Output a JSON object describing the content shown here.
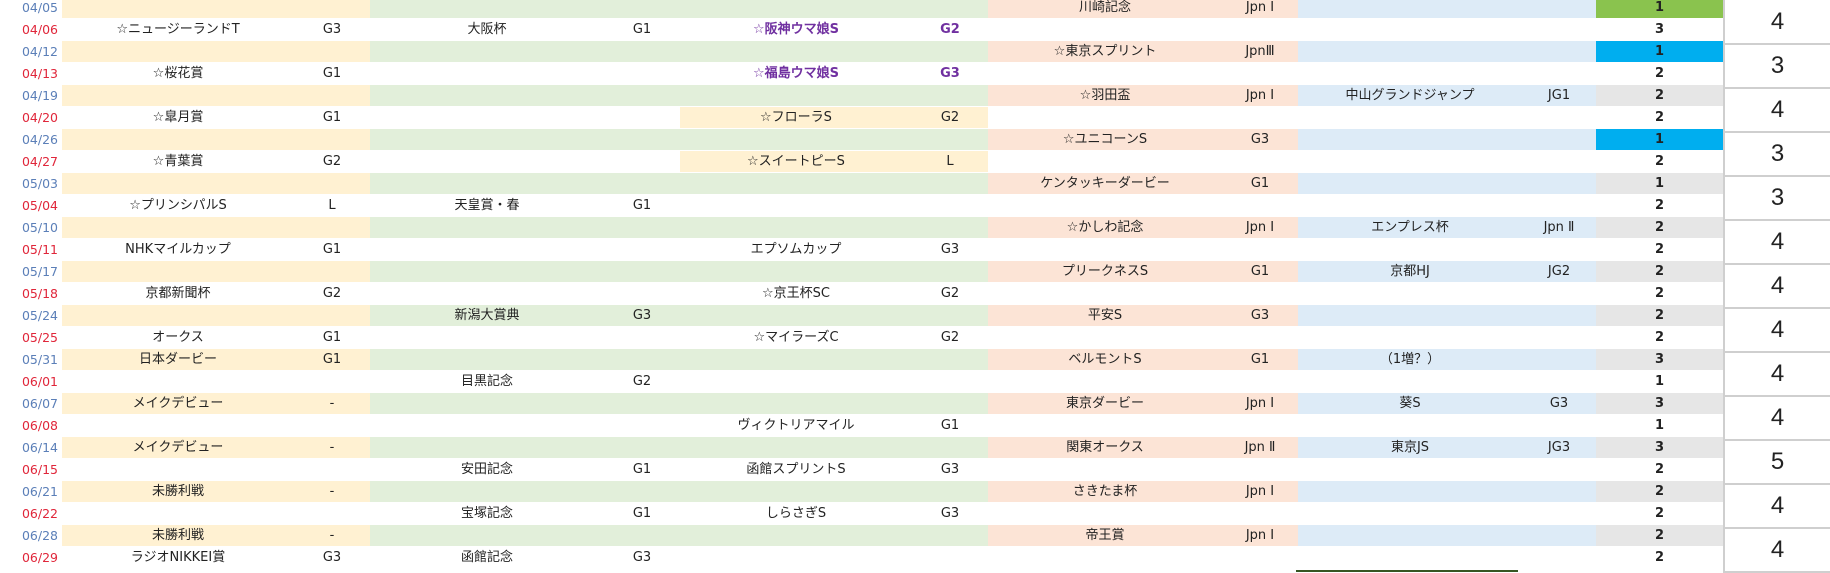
{
  "colors": {
    "date_weekday": "#5b7fb8",
    "date_weekend": "#e0263a",
    "bg_A": "#fff1d2",
    "bg_B": "#e2efda",
    "bg_C": "#fce4d6",
    "bg_D": "#ddebf7",
    "bg_E": "#e6e6e6",
    "count_green": "#8ac34e",
    "count_blue": "#00aeef",
    "purple_text": "#7030a0"
  },
  "rows": [
    {
      "date": "04/05",
      "weekend": false,
      "a_name": "",
      "a_grade": "",
      "b_name": "",
      "b_grade": "",
      "c_name": "",
      "c_grade": "",
      "d_name": "川崎記念",
      "d_grade": "Jpn Ⅰ",
      "e_name": "",
      "e_grade": "",
      "count": "1",
      "count_color": "green"
    },
    {
      "date": "04/06",
      "weekend": true,
      "a_name": "☆ニュージーランドT",
      "a_grade": "G3",
      "b_name": "大阪杯",
      "b_grade": "G1",
      "c_name": "☆阪神ウマ娘S",
      "c_grade": "G2",
      "c_purple": true,
      "d_name": "",
      "d_grade": "",
      "e_name": "",
      "e_grade": "",
      "count": "3"
    },
    {
      "date": "04/12",
      "weekend": false,
      "a_name": "",
      "a_grade": "",
      "b_name": "",
      "b_grade": "",
      "c_name": "",
      "c_grade": "",
      "d_name": "☆東京スプリント",
      "d_grade": "JpnⅢ",
      "e_name": "",
      "e_grade": "",
      "count": "1",
      "count_color": "blue"
    },
    {
      "date": "04/13",
      "weekend": true,
      "a_name": "☆桜花賞",
      "a_grade": "G1",
      "b_name": "",
      "b_grade": "",
      "c_name": "☆福島ウマ娘S",
      "c_grade": "G3",
      "c_purple": true,
      "d_name": "",
      "d_grade": "",
      "e_name": "",
      "e_grade": "",
      "count": "2"
    },
    {
      "date": "04/19",
      "weekend": false,
      "a_name": "",
      "a_grade": "",
      "b_name": "",
      "b_grade": "",
      "c_name": "",
      "c_grade": "",
      "d_name": "☆羽田盃",
      "d_grade": "Jpn Ⅰ",
      "e_name": "中山グランドジャンプ",
      "e_grade": "JG1",
      "count": "2"
    },
    {
      "date": "04/20",
      "weekend": true,
      "a_name": "☆皐月賞",
      "a_grade": "G1",
      "b_name": "",
      "b_grade": "",
      "c_name": "☆フローラS",
      "c_grade": "G2",
      "c_bg": "A",
      "d_name": "",
      "d_grade": "",
      "e_name": "",
      "e_grade": "",
      "count": "2"
    },
    {
      "date": "04/26",
      "weekend": false,
      "a_name": "",
      "a_grade": "",
      "b_name": "",
      "b_grade": "",
      "c_name": "",
      "c_grade": "",
      "d_name": "☆ユニコーンS",
      "d_grade": "G3",
      "e_name": "",
      "e_grade": "",
      "count": "1",
      "count_color": "blue"
    },
    {
      "date": "04/27",
      "weekend": true,
      "a_name": "☆青葉賞",
      "a_grade": "G2",
      "b_name": "",
      "b_grade": "",
      "c_name": "☆スイートピーS",
      "c_grade": "L",
      "c_bg": "A",
      "d_name": "",
      "d_grade": "",
      "e_name": "",
      "e_grade": "",
      "count": "2"
    },
    {
      "date": "05/03",
      "weekend": false,
      "a_name": "",
      "a_grade": "",
      "b_name": "",
      "b_grade": "",
      "c_name": "",
      "c_grade": "",
      "d_name": "ケンタッキーダービー",
      "d_grade": "G1",
      "e_name": "",
      "e_grade": "",
      "count": "1"
    },
    {
      "date": "05/04",
      "weekend": true,
      "a_name": "☆プリンシパルS",
      "a_grade": "L",
      "b_name": "天皇賞・春",
      "b_grade": "G1",
      "c_name": "",
      "c_grade": "",
      "d_name": "",
      "d_grade": "",
      "e_name": "",
      "e_grade": "",
      "count": "2"
    },
    {
      "date": "05/10",
      "weekend": false,
      "a_name": "",
      "a_grade": "",
      "b_name": "",
      "b_grade": "",
      "c_name": "",
      "c_grade": "",
      "d_name": "☆かしわ記念",
      "d_grade": "Jpn Ⅰ",
      "e_name": "エンプレス杯",
      "e_grade": "Jpn Ⅱ",
      "count": "2"
    },
    {
      "date": "05/11",
      "weekend": true,
      "a_name": "NHKマイルカップ",
      "a_grade": "G1",
      "b_name": "",
      "b_grade": "",
      "c_name": "エプソムカップ",
      "c_grade": "G3",
      "d_name": "",
      "d_grade": "",
      "e_name": "",
      "e_grade": "",
      "count": "2"
    },
    {
      "date": "05/17",
      "weekend": false,
      "a_name": "",
      "a_grade": "",
      "b_name": "",
      "b_grade": "",
      "c_name": "",
      "c_grade": "",
      "d_name": "プリークネスS",
      "d_grade": "G1",
      "e_name": "京都HJ",
      "e_grade": "JG2",
      "count": "2"
    },
    {
      "date": "05/18",
      "weekend": true,
      "a_name": "京都新聞杯",
      "a_grade": "G2",
      "b_name": "",
      "b_grade": "",
      "c_name": "☆京王杯SC",
      "c_grade": "G2",
      "d_name": "",
      "d_grade": "",
      "e_name": "",
      "e_grade": "",
      "count": "2"
    },
    {
      "date": "05/24",
      "weekend": false,
      "a_name": "",
      "a_grade": "",
      "b_name": "新潟大賞典",
      "b_grade": "G3",
      "c_name": "",
      "c_grade": "",
      "d_name": "平安S",
      "d_grade": "G3",
      "e_name": "",
      "e_grade": "",
      "count": "2"
    },
    {
      "date": "05/25",
      "weekend": true,
      "a_name": "オークス",
      "a_grade": "G1",
      "b_name": "",
      "b_grade": "",
      "c_name": "☆マイラーズC",
      "c_grade": "G2",
      "d_name": "",
      "d_grade": "",
      "e_name": "",
      "e_grade": "",
      "count": "2"
    },
    {
      "date": "05/31",
      "weekend": false,
      "a_name": "日本ダービー",
      "a_grade": "G1",
      "b_name": "",
      "b_grade": "",
      "c_name": "",
      "c_grade": "",
      "d_name": "ベルモントS",
      "d_grade": "G1",
      "e_name": "（1増？）",
      "e_grade": "",
      "count": "3"
    },
    {
      "date": "06/01",
      "weekend": true,
      "a_name": "",
      "a_grade": "",
      "b_name": "目黒記念",
      "b_grade": "G2",
      "c_name": "",
      "c_grade": "",
      "d_name": "",
      "d_grade": "",
      "e_name": "",
      "e_grade": "",
      "count": "1"
    },
    {
      "date": "06/07",
      "weekend": false,
      "a_name": "メイクデビュー",
      "a_grade": "-",
      "b_name": "",
      "b_grade": "",
      "c_name": "",
      "c_grade": "",
      "d_name": "東京ダービー",
      "d_grade": "Jpn Ⅰ",
      "e_name": "葵S",
      "e_grade": "G3",
      "count": "3"
    },
    {
      "date": "06/08",
      "weekend": true,
      "a_name": "",
      "a_grade": "",
      "b_name": "",
      "b_grade": "",
      "c_name": "ヴィクトリアマイル",
      "c_grade": "G1",
      "d_name": "",
      "d_grade": "",
      "e_name": "",
      "e_grade": "",
      "count": "1"
    },
    {
      "date": "06/14",
      "weekend": false,
      "a_name": "メイクデビュー",
      "a_grade": "-",
      "b_name": "",
      "b_grade": "",
      "c_name": "",
      "c_grade": "",
      "d_name": "関東オークス",
      "d_grade": "Jpn Ⅱ",
      "e_name": "東京JS",
      "e_grade": "JG3",
      "count": "3"
    },
    {
      "date": "06/15",
      "weekend": true,
      "a_name": "",
      "a_grade": "",
      "b_name": "安田記念",
      "b_grade": "G1",
      "c_name": "函館スプリントS",
      "c_grade": "G3",
      "d_name": "",
      "d_grade": "",
      "e_name": "",
      "e_grade": "",
      "count": "2"
    },
    {
      "date": "06/21",
      "weekend": false,
      "a_name": "未勝利戦",
      "a_grade": "-",
      "b_name": "",
      "b_grade": "",
      "c_name": "",
      "c_grade": "",
      "d_name": "さきたま杯",
      "d_grade": "Jpn Ⅰ",
      "e_name": "",
      "e_grade": "",
      "count": "2"
    },
    {
      "date": "06/22",
      "weekend": true,
      "a_name": "",
      "a_grade": "",
      "b_name": "宝塚記念",
      "b_grade": "G1",
      "c_name": "しらさぎS",
      "c_grade": "G3",
      "d_name": "",
      "d_grade": "",
      "e_name": "",
      "e_grade": "",
      "count": "2"
    },
    {
      "date": "06/28",
      "weekend": false,
      "a_name": "未勝利戦",
      "a_grade": "-",
      "b_name": "",
      "b_grade": "",
      "c_name": "",
      "c_grade": "",
      "d_name": "帝王賞",
      "d_grade": "Jpn Ⅰ",
      "e_name": "",
      "e_grade": "",
      "count": "2"
    },
    {
      "date": "06/29",
      "weekend": true,
      "a_name": "ラジオNIKKEI賞",
      "a_grade": "G3",
      "b_name": "函館記念",
      "b_grade": "G3",
      "c_name": "",
      "c_grade": "",
      "d_name": "",
      "d_grade": "",
      "e_name": "",
      "e_grade": "",
      "count": "2"
    }
  ],
  "week_totals": [
    "4",
    "3",
    "4",
    "3",
    "3",
    "4",
    "4",
    "4",
    "4",
    "4",
    "5",
    "4",
    "4"
  ]
}
